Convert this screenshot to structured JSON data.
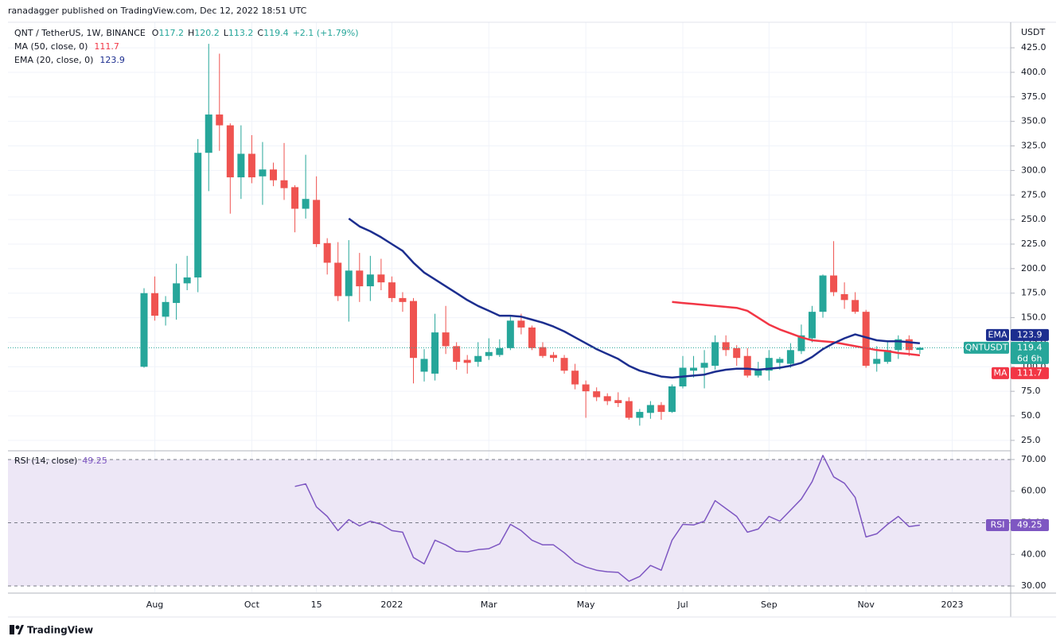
{
  "published": "ranadagger published on TradingView.com, Dec 12, 2022 18:51 UTC",
  "brand": "TradingView",
  "chart_data": [
    {
      "type": "candlestick",
      "symbol": "QNT / TetherUS, 1W, BINANCE",
      "ohlc_labels": [
        "O",
        "H",
        "L",
        "C"
      ],
      "change": "+2.1 (+1.79%)",
      "unit": "USDT",
      "ticker": "QNTUSDT",
      "countdown": "6d 6h",
      "up_color": "#26a69a",
      "down_color": "#ef5350",
      "grid": true,
      "categories": [
        null,
        "Aug",
        null,
        null,
        null,
        null,
        null,
        null,
        null,
        null,
        "Oct",
        null,
        null,
        null,
        null,
        null,
        "15",
        null,
        null,
        null,
        null,
        null,
        null,
        "2022",
        null,
        null,
        null,
        null,
        null,
        null,
        null,
        null,
        "Mar",
        null,
        null,
        null,
        null,
        null,
        null,
        null,
        null,
        "May",
        null,
        null,
        null,
        null,
        null,
        null,
        null,
        null,
        "Jul",
        null,
        null,
        null,
        null,
        null,
        null,
        null,
        "Sep",
        null,
        null,
        null,
        null,
        null,
        null,
        null,
        null,
        "Nov",
        null,
        null,
        null,
        null,
        null,
        null,
        null,
        "2023"
      ],
      "open": [
        100,
        175,
        151,
        165,
        185,
        191,
        318,
        357,
        346,
        293,
        317,
        294,
        301,
        290,
        283,
        261,
        270,
        226,
        206,
        172,
        198,
        182,
        194,
        186,
        170,
        167,
        95,
        93,
        135,
        121,
        107,
        105,
        111,
        112,
        119,
        147,
        140,
        120,
        112,
        109,
        96,
        82,
        75,
        70,
        66,
        65,
        48,
        53,
        61,
        54,
        80,
        96,
        99,
        101,
        125,
        119,
        111,
        91,
        96,
        104,
        103,
        116,
        129,
        156,
        193,
        174,
        168,
        156,
        103,
        105,
        117,
        128,
        117.2,
        null,
        null,
        null
      ],
      "high": [
        180,
        192,
        172,
        205,
        213,
        332,
        429,
        419,
        348,
        346,
        336,
        329,
        308,
        328,
        285,
        316,
        294,
        231,
        227,
        229,
        216,
        213,
        210,
        192,
        176,
        170,
        118,
        154,
        162,
        125,
        112,
        125,
        129,
        128,
        151,
        154,
        142,
        125,
        115,
        112,
        103,
        86,
        79,
        73,
        74,
        69,
        57,
        65,
        64,
        82,
        111,
        111,
        117,
        132,
        132,
        122,
        119,
        105,
        117,
        110,
        124,
        143,
        162,
        194,
        228,
        186,
        176,
        158,
        121,
        125,
        132,
        132,
        120.2,
        null,
        null,
        null
      ],
      "low": [
        99,
        147,
        142,
        148,
        178,
        176,
        279,
        320,
        256,
        271,
        287,
        265,
        284,
        270,
        237,
        251,
        222,
        194,
        167,
        146,
        166,
        167,
        178,
        166,
        156,
        83,
        85,
        86,
        113,
        97,
        93,
        100,
        107,
        110,
        117,
        133,
        117,
        109,
        105,
        93,
        77,
        48,
        65,
        61,
        59,
        46,
        40,
        47,
        46,
        53,
        78,
        89,
        78,
        97,
        111,
        101,
        89,
        89,
        86,
        97,
        99,
        113,
        125,
        150,
        172,
        159,
        154,
        99,
        95,
        103,
        108,
        111,
        113.2,
        null,
        null,
        null
      ],
      "close": [
        175,
        152,
        166,
        185,
        191,
        318,
        357,
        346,
        293,
        317,
        293,
        301,
        290,
        282,
        261,
        271,
        225,
        206,
        172,
        198,
        182,
        194,
        186,
        170,
        166,
        109,
        108,
        135,
        121,
        105,
        104,
        111,
        115,
        119,
        147,
        140,
        119,
        111,
        109,
        96,
        82,
        75,
        69,
        65,
        63,
        48,
        54,
        61,
        54,
        80,
        99,
        99,
        104,
        125,
        117,
        109,
        91,
        97,
        109,
        108,
        117,
        132,
        156,
        193,
        176,
        168,
        156,
        101,
        108,
        117,
        128,
        117,
        119.4,
        null,
        null,
        null
      ],
      "overlays": [
        {
          "name": "MA (50, close, 0)",
          "tag": "MA",
          "color": "#f23645",
          "values": [
            null,
            null,
            null,
            null,
            null,
            null,
            null,
            null,
            null,
            null,
            null,
            null,
            null,
            null,
            null,
            null,
            null,
            null,
            null,
            null,
            null,
            null,
            null,
            null,
            null,
            null,
            null,
            null,
            null,
            null,
            null,
            null,
            null,
            null,
            null,
            null,
            null,
            null,
            null,
            null,
            null,
            null,
            null,
            null,
            null,
            null,
            null,
            null,
            null,
            166,
            165,
            164,
            163,
            162,
            161,
            160,
            157,
            150,
            143,
            138,
            134,
            130,
            127,
            126,
            125,
            123,
            121,
            119,
            117,
            116,
            114,
            113,
            111.7,
            null,
            null,
            null
          ]
        },
        {
          "name": "EMA (20, close, 0)",
          "tag": "EMA",
          "color": "#1c2e8f",
          "values": [
            null,
            null,
            null,
            null,
            null,
            null,
            null,
            null,
            null,
            null,
            null,
            null,
            null,
            null,
            null,
            null,
            null,
            null,
            null,
            251,
            243,
            238,
            232,
            225,
            218,
            206,
            196,
            189,
            182,
            175,
            168,
            162,
            157,
            152,
            152,
            151,
            148,
            145,
            141,
            136,
            130,
            124,
            118,
            113,
            108,
            101,
            96,
            93,
            90,
            89,
            90,
            91,
            92,
            95,
            97,
            98,
            98,
            97,
            98,
            99,
            101,
            104,
            110,
            118,
            124,
            129,
            133,
            130,
            127,
            126,
            126,
            125,
            123.9,
            null,
            null,
            null
          ]
        }
      ],
      "ylim": [
        16,
        451
      ],
      "yticks": [
        {
          "value": 25,
          "label": "25.0"
        },
        {
          "value": 50,
          "label": "50.0"
        },
        {
          "value": 75,
          "label": "75.0"
        },
        {
          "value": 100,
          "label": "100.0"
        },
        {
          "value": 125,
          "label": "125.0"
        },
        {
          "value": 150,
          "label": "150.0"
        },
        {
          "value": 175,
          "label": "175.0"
        },
        {
          "value": 200,
          "label": "200.0"
        },
        {
          "value": 225,
          "label": "225.0"
        },
        {
          "value": 250,
          "label": "250.0"
        },
        {
          "value": 275,
          "label": "275.0"
        },
        {
          "value": 300,
          "label": "300.0"
        },
        {
          "value": 325,
          "label": "325.0"
        },
        {
          "value": 350,
          "label": "350.0"
        },
        {
          "value": 375,
          "label": "375.0"
        },
        {
          "value": 400,
          "label": "400.0"
        },
        {
          "value": 425,
          "label": "425.0"
        }
      ]
    },
    {
      "type": "line",
      "name": "RSI (14, close)",
      "tag": "RSI",
      "color": "#7e57c2",
      "band_color": "#ede7f6",
      "levels": [
        30,
        50,
        70
      ],
      "values": [
        null,
        null,
        null,
        null,
        null,
        null,
        null,
        null,
        null,
        null,
        null,
        null,
        null,
        null,
        61.5,
        62.3,
        55,
        52,
        47.5,
        51,
        49,
        50.5,
        49.5,
        47.5,
        47,
        39,
        37,
        44.5,
        43,
        41,
        40.8,
        41.5,
        41.8,
        43.3,
        49.5,
        47.5,
        44.5,
        43,
        43,
        40.5,
        37.5,
        36,
        35,
        34.5,
        34.3,
        31.5,
        33,
        36.5,
        35,
        44.5,
        49.5,
        49.3,
        50.5,
        57,
        54.5,
        52,
        47,
        48,
        52,
        50.5,
        54,
        57.5,
        63,
        71.3,
        64.5,
        62.5,
        58,
        45.5,
        46.5,
        49.5,
        52,
        48.8,
        49.25,
        null,
        null,
        null
      ],
      "ylim": [
        28,
        72.5
      ],
      "yticks": [
        {
          "value": 30,
          "label": "30.00"
        },
        {
          "value": 40,
          "label": "40.00"
        },
        {
          "value": 50,
          "label": "50.00"
        },
        {
          "value": 60,
          "label": "60.00"
        },
        {
          "value": 70,
          "label": "70.00"
        }
      ]
    }
  ]
}
